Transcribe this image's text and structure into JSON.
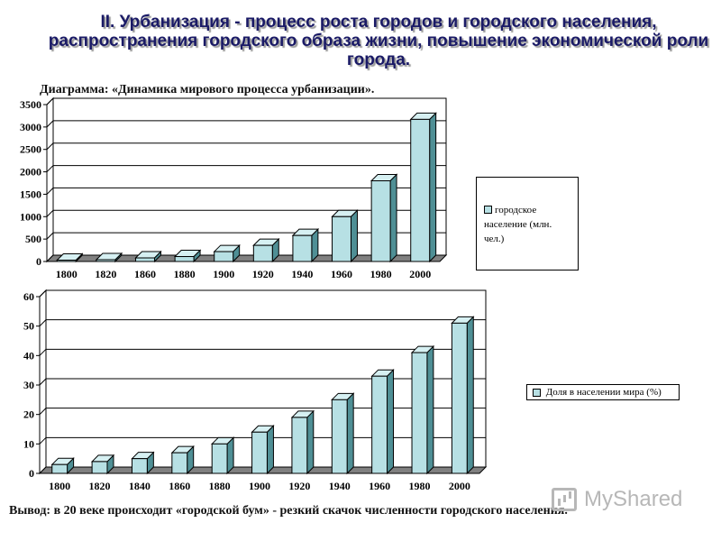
{
  "slide": {
    "title": "II. Урбанизация - процесс роста городов и городского населения, распространения городского образа жизни, повышение экономической роли города.",
    "subtitle": "Диаграмма: «Динамика мирового процесса урбанизации».",
    "conclusion": "Вывод: в 20 веке происходит «городской бум» - резкий скачок численности городского населения.",
    "watermark": "MyShared",
    "colors": {
      "bar_front": "#b7e0e4",
      "bar_side": "#4f8f95",
      "bar_top": "#d6f0f2",
      "floor": "#808080",
      "title": "#1a1a66"
    }
  },
  "chart_data": [
    {
      "type": "bar",
      "categories": [
        "1800",
        "1820",
        "1860",
        "1880",
        "1900",
        "1920",
        "1940",
        "1960",
        "1980",
        "2000"
      ],
      "series": [
        {
          "name": "городское население (млн. чел.)",
          "values": [
            30,
            40,
            80,
            110,
            220,
            360,
            580,
            1000,
            1800,
            3170
          ]
        }
      ],
      "ylim": [
        0,
        3500
      ],
      "yticks": [
        0,
        500,
        1000,
        1500,
        2000,
        2500,
        3000,
        3500
      ],
      "legend": "right",
      "grid": true
    },
    {
      "type": "bar",
      "categories": [
        "1800",
        "1820",
        "1840",
        "1860",
        "1880",
        "1900",
        "1920",
        "1940",
        "1960",
        "1980",
        "2000"
      ],
      "series": [
        {
          "name": "Доля в населении мира (%)",
          "values": [
            3,
            4,
            5,
            7,
            10,
            14,
            19,
            25,
            33,
            41,
            51
          ]
        }
      ],
      "ylim": [
        0,
        60
      ],
      "yticks": [
        0,
        10,
        20,
        30,
        40,
        50,
        60
      ],
      "legend": "right",
      "grid": true
    }
  ]
}
